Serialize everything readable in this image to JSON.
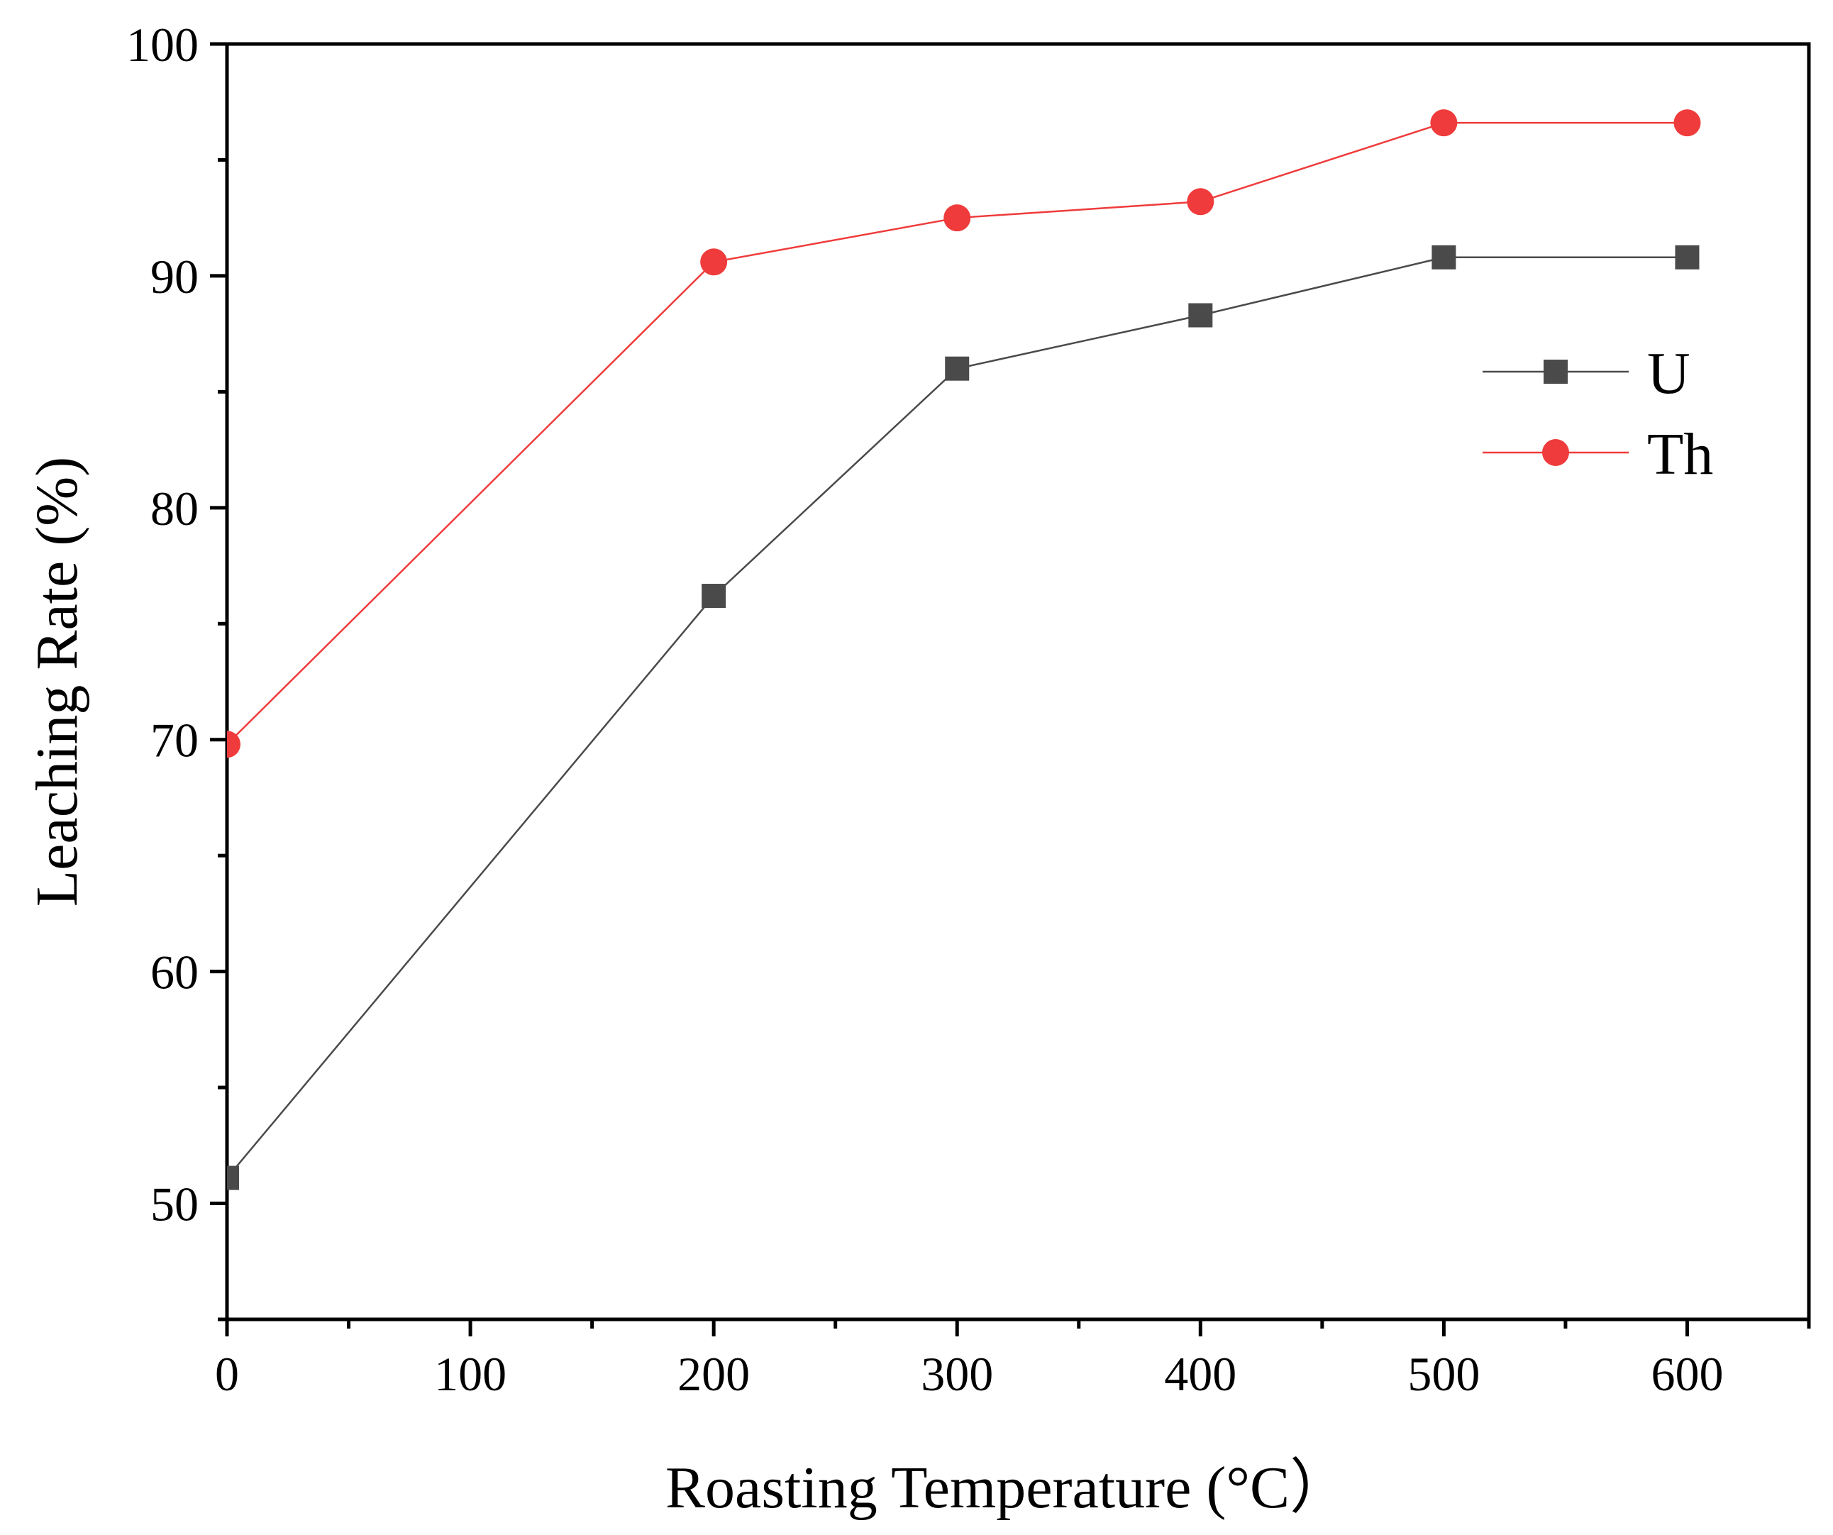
{
  "chart_data": {
    "type": "line",
    "title": "",
    "xlabel": "Roasting Temperature (°C）",
    "ylabel": "Leaching Rate (%)",
    "xlim": [
      0,
      650
    ],
    "ylim": [
      45,
      100
    ],
    "x_ticks": [
      0,
      100,
      200,
      300,
      400,
      500,
      600
    ],
    "x_tick_labels": [
      "0",
      "100",
      "200",
      "300",
      "400",
      "500",
      "600"
    ],
    "y_ticks": [
      50,
      60,
      70,
      80,
      90,
      100
    ],
    "y_tick_labels": [
      "50",
      "60",
      "70",
      "80",
      "90",
      "100"
    ],
    "grid": false,
    "legend_position": "right",
    "series": [
      {
        "name": "U",
        "marker": "square",
        "color": "#4a4a4a",
        "x": [
          0,
          200,
          300,
          400,
          500,
          600
        ],
        "values": [
          51.1,
          76.2,
          86.0,
          88.3,
          90.8,
          90.8
        ]
      },
      {
        "name": "Th",
        "marker": "circle",
        "color": "#ef3b3b",
        "x": [
          0,
          200,
          300,
          400,
          500,
          600
        ],
        "values": [
          69.8,
          90.6,
          92.5,
          93.2,
          96.6,
          96.6
        ]
      }
    ]
  }
}
